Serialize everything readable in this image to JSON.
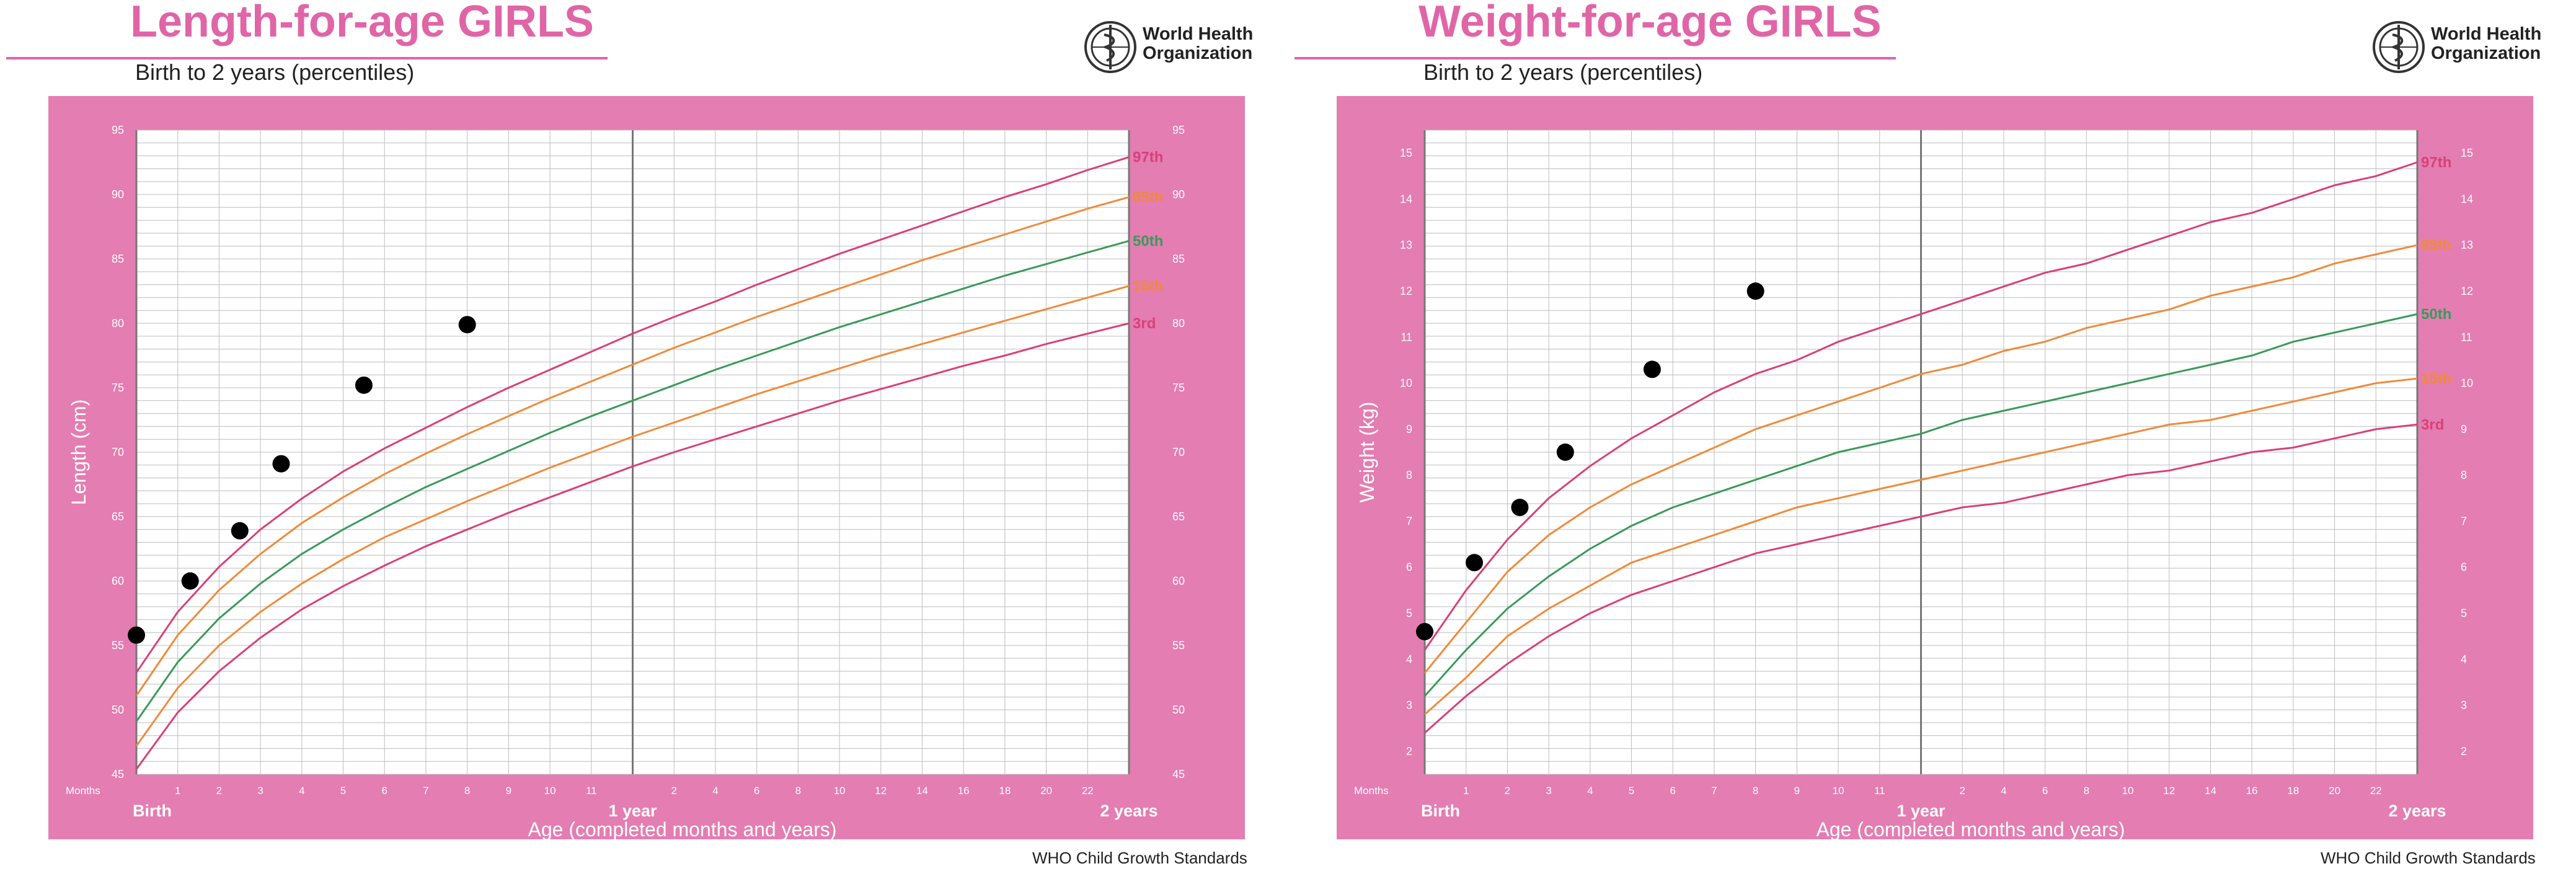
{
  "chart_data": [
    {
      "type": "line",
      "title": "Length-for-age GIRLS",
      "subtitle": "Birth to 2 years (percentiles)",
      "org": [
        "World Health",
        "Organization"
      ],
      "footer": "WHO Child Growth Standards",
      "xlabel": "Age (completed months and years)",
      "ylabel": "Length (cm)",
      "months_label": "Months",
      "xlim": [
        0,
        24
      ],
      "ylim": [
        45,
        95
      ],
      "y_ticks": [
        45,
        50,
        55,
        60,
        65,
        70,
        75,
        80,
        85,
        90,
        95
      ],
      "x_major_labels": [
        {
          "x": 0,
          "label": "Birth"
        },
        {
          "x": 12,
          "label": "1 year"
        },
        {
          "x": 24,
          "label": "2 years"
        }
      ],
      "x_month_labels": [
        "1",
        "2",
        "3",
        "4",
        "5",
        "6",
        "7",
        "8",
        "9",
        "10",
        "11",
        "2",
        "4",
        "6",
        "8",
        "10",
        "12",
        "14",
        "16",
        "18",
        "20",
        "22"
      ],
      "grid": true,
      "x": [
        0,
        1,
        2,
        3,
        4,
        5,
        6,
        7,
        8,
        9,
        10,
        11,
        12,
        13,
        14,
        15,
        16,
        17,
        18,
        19,
        20,
        21,
        22,
        23,
        24
      ],
      "series": [
        {
          "name": "97th",
          "color": "#d8407a",
          "values": [
            52.9,
            57.6,
            61.1,
            64.0,
            66.4,
            68.5,
            70.3,
            71.9,
            73.5,
            75.0,
            76.4,
            77.8,
            79.2,
            80.5,
            81.7,
            83.0,
            84.2,
            85.4,
            86.5,
            87.6,
            88.7,
            89.8,
            90.8,
            91.9,
            92.9
          ]
        },
        {
          "name": "85th",
          "color": "#f08a3a",
          "values": [
            51.1,
            55.8,
            59.3,
            62.1,
            64.5,
            66.5,
            68.3,
            69.9,
            71.4,
            72.8,
            74.2,
            75.5,
            76.8,
            78.1,
            79.3,
            80.5,
            81.6,
            82.7,
            83.8,
            84.9,
            85.9,
            86.9,
            87.9,
            88.9,
            89.8
          ]
        },
        {
          "name": "50th",
          "color": "#3a9a5a",
          "values": [
            49.1,
            53.7,
            57.1,
            59.8,
            62.1,
            64.0,
            65.7,
            67.3,
            68.7,
            70.1,
            71.5,
            72.8,
            74.0,
            75.2,
            76.4,
            77.5,
            78.6,
            79.7,
            80.7,
            81.7,
            82.7,
            83.7,
            84.6,
            85.5,
            86.4
          ]
        },
        {
          "name": "15th",
          "color": "#f08a3a",
          "values": [
            47.2,
            51.7,
            55.0,
            57.6,
            59.8,
            61.7,
            63.4,
            64.8,
            66.2,
            67.5,
            68.8,
            70.0,
            71.2,
            72.3,
            73.4,
            74.5,
            75.5,
            76.5,
            77.5,
            78.4,
            79.3,
            80.2,
            81.1,
            82.0,
            82.9
          ]
        },
        {
          "name": "3rd",
          "color": "#d8407a",
          "values": [
            45.4,
            49.8,
            53.0,
            55.6,
            57.8,
            59.6,
            61.2,
            62.7,
            64.0,
            65.3,
            66.5,
            67.7,
            68.9,
            70.0,
            71.0,
            72.0,
            73.0,
            74.0,
            74.9,
            75.8,
            76.7,
            77.5,
            78.4,
            79.2,
            80.0
          ]
        }
      ],
      "points": [
        {
          "x": 0,
          "y": 55.8
        },
        {
          "x": 1.3,
          "y": 60.0
        },
        {
          "x": 2.5,
          "y": 63.9
        },
        {
          "x": 3.5,
          "y": 69.1
        },
        {
          "x": 5.5,
          "y": 75.2
        },
        {
          "x": 8.0,
          "y": 79.9
        }
      ]
    },
    {
      "type": "line",
      "title": "Weight-for-age GIRLS",
      "subtitle": "Birth to 2 years (percentiles)",
      "org": [
        "World Health",
        "Organization"
      ],
      "footer": "WHO Child Growth Standards",
      "xlabel": "Age (completed months and years)",
      "ylabel": "Weight (kg)",
      "months_label": "Months",
      "xlim": [
        0,
        24
      ],
      "ylim": [
        1.5,
        15.5
      ],
      "y_ticks": [
        2,
        3,
        4,
        5,
        6,
        7,
        8,
        9,
        10,
        11,
        12,
        13,
        14,
        15
      ],
      "x_major_labels": [
        {
          "x": 0,
          "label": "Birth"
        },
        {
          "x": 12,
          "label": "1 year"
        },
        {
          "x": 24,
          "label": "2 years"
        }
      ],
      "x_month_labels": [
        "1",
        "2",
        "3",
        "4",
        "5",
        "6",
        "7",
        "8",
        "9",
        "10",
        "11",
        "2",
        "4",
        "6",
        "8",
        "10",
        "12",
        "14",
        "16",
        "18",
        "20",
        "22"
      ],
      "grid": true,
      "x": [
        0,
        1,
        2,
        3,
        4,
        5,
        6,
        7,
        8,
        9,
        10,
        11,
        12,
        13,
        14,
        15,
        16,
        17,
        18,
        19,
        20,
        21,
        22,
        23,
        24
      ],
      "series": [
        {
          "name": "97th",
          "color": "#d8407a",
          "values": [
            4.2,
            5.5,
            6.6,
            7.5,
            8.2,
            8.8,
            9.3,
            9.8,
            10.2,
            10.5,
            10.9,
            11.2,
            11.5,
            11.8,
            12.1,
            12.4,
            12.6,
            12.9,
            13.2,
            13.5,
            13.7,
            14.0,
            14.3,
            14.5,
            14.8
          ]
        },
        {
          "name": "85th",
          "color": "#f08a3a",
          "values": [
            3.7,
            4.8,
            5.9,
            6.7,
            7.3,
            7.8,
            8.2,
            8.6,
            9.0,
            9.3,
            9.6,
            9.9,
            10.2,
            10.4,
            10.7,
            10.9,
            11.2,
            11.4,
            11.6,
            11.9,
            12.1,
            12.3,
            12.6,
            12.8,
            13.0
          ]
        },
        {
          "name": "50th",
          "color": "#3a9a5a",
          "values": [
            3.2,
            4.2,
            5.1,
            5.8,
            6.4,
            6.9,
            7.3,
            7.6,
            7.9,
            8.2,
            8.5,
            8.7,
            8.9,
            9.2,
            9.4,
            9.6,
            9.8,
            10.0,
            10.2,
            10.4,
            10.6,
            10.9,
            11.1,
            11.3,
            11.5
          ]
        },
        {
          "name": "15th",
          "color": "#f08a3a",
          "values": [
            2.8,
            3.6,
            4.5,
            5.1,
            5.6,
            6.1,
            6.4,
            6.7,
            7.0,
            7.3,
            7.5,
            7.7,
            7.9,
            8.1,
            8.3,
            8.5,
            8.7,
            8.9,
            9.1,
            9.2,
            9.4,
            9.6,
            9.8,
            10.0,
            10.1
          ]
        },
        {
          "name": "3rd",
          "color": "#d8407a",
          "values": [
            2.4,
            3.2,
            3.9,
            4.5,
            5.0,
            5.4,
            5.7,
            6.0,
            6.3,
            6.5,
            6.7,
            6.9,
            7.1,
            7.3,
            7.4,
            7.6,
            7.8,
            8.0,
            8.1,
            8.3,
            8.5,
            8.6,
            8.8,
            9.0,
            9.1
          ]
        }
      ],
      "points": [
        {
          "x": 0,
          "y": 4.6
        },
        {
          "x": 1.2,
          "y": 6.1
        },
        {
          "x": 2.3,
          "y": 7.3
        },
        {
          "x": 3.4,
          "y": 8.5
        },
        {
          "x": 5.5,
          "y": 10.3
        },
        {
          "x": 8.0,
          "y": 12.0
        }
      ]
    }
  ]
}
